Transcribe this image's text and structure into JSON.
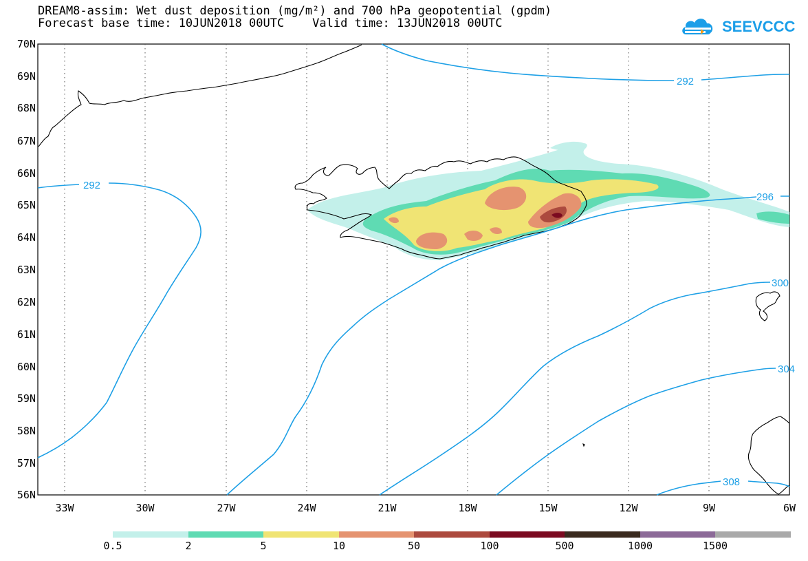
{
  "title": {
    "line1": "DREAM8-assim: Wet dust deposition (mg/m²) and 700 hPa geopotential (gpdm)",
    "line2": "Forecast base time: 10JUN2018 00UTC    Valid time: 13JUN2018 00UTC"
  },
  "logo": {
    "text": "SEEVCCC",
    "icon": "cloud-logo-icon",
    "color": "#1b9ee8"
  },
  "map": {
    "lat_labels": [
      "70N",
      "69N",
      "68N",
      "67N",
      "66N",
      "65N",
      "64N",
      "63N",
      "62N",
      "61N",
      "60N",
      "59N",
      "58N",
      "57N",
      "56N"
    ],
    "lon_labels": [
      "33W",
      "30W",
      "27W",
      "24W",
      "21W",
      "18W",
      "15W",
      "12W",
      "9W",
      "6W"
    ],
    "lat_range": [
      56,
      70
    ],
    "lon_range": [
      -34.5,
      -6
    ],
    "grid": true,
    "contour_color": "#1ea0e6",
    "contours": [
      {
        "label": "292"
      },
      {
        "label": "292"
      },
      {
        "label": "296"
      },
      {
        "label": "300"
      },
      {
        "label": "304"
      },
      {
        "label": "308"
      }
    ]
  },
  "colorbar": {
    "colors": [
      "#c3f0ea",
      "#5fdbb3",
      "#f0e474",
      "#e59370",
      "#ac4a3e",
      "#7b0a20",
      "#3a2a1e",
      "#8c6a98",
      "#a9a9a9"
    ],
    "labels": [
      "0.5",
      "2",
      "5",
      "10",
      "50",
      "100",
      "500",
      "1000",
      "1500"
    ]
  }
}
